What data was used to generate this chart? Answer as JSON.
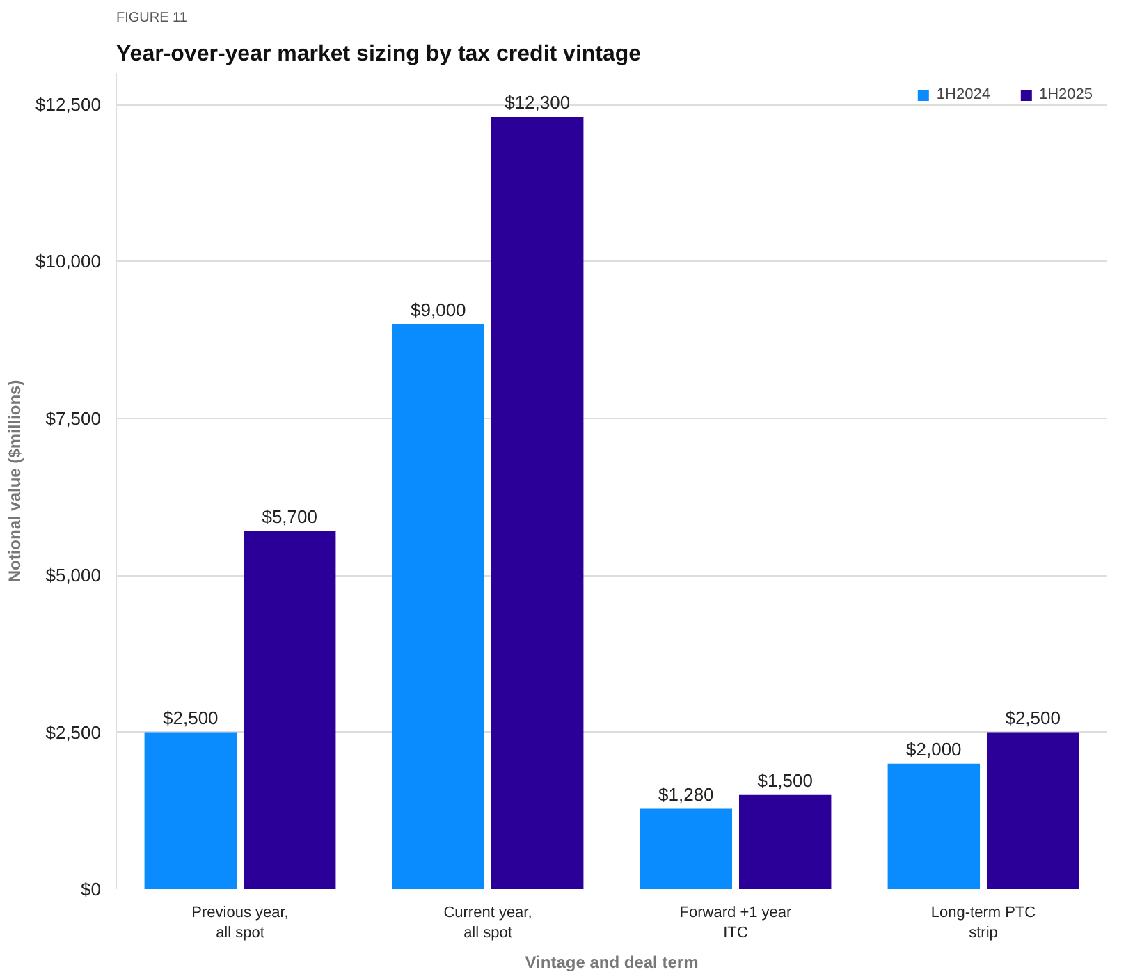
{
  "chart_data": {
    "type": "bar",
    "subtitle": "FIGURE 11",
    "title": "Year-over-year market sizing by tax credit vintage",
    "xlabel": "Vintage and deal term",
    "ylabel": "Notional value ($millions)",
    "categories": [
      "Previous year,\nall spot",
      "Current year,\nall spot",
      "Forward +1 year\nITC",
      "Long-term PTC\nstrip"
    ],
    "series": [
      {
        "name": "1H2024",
        "color": "#0a8cff",
        "values": [
          2500,
          9000,
          1280,
          2000
        ],
        "value_labels": [
          "$2,500",
          "$9,000",
          "$1,280",
          "$2,000"
        ]
      },
      {
        "name": "1H2025",
        "color": "#2a0099",
        "values": [
          5700,
          12300,
          1500,
          2500
        ],
        "value_labels": [
          "$5,700",
          "$12,300",
          "$1,500",
          "$2,500"
        ]
      }
    ],
    "ylim": [
      0,
      13000
    ],
    "yticks": [
      {
        "value": 0,
        "label": "$0"
      },
      {
        "value": 2500,
        "label": "$2,500"
      },
      {
        "value": 5000,
        "label": "$5,000"
      },
      {
        "value": 7500,
        "label": "$7,500"
      },
      {
        "value": 10000,
        "label": "$10,000"
      },
      {
        "value": 12500,
        "label": "$12,500"
      }
    ],
    "grid": "y",
    "legend": "top right"
  }
}
